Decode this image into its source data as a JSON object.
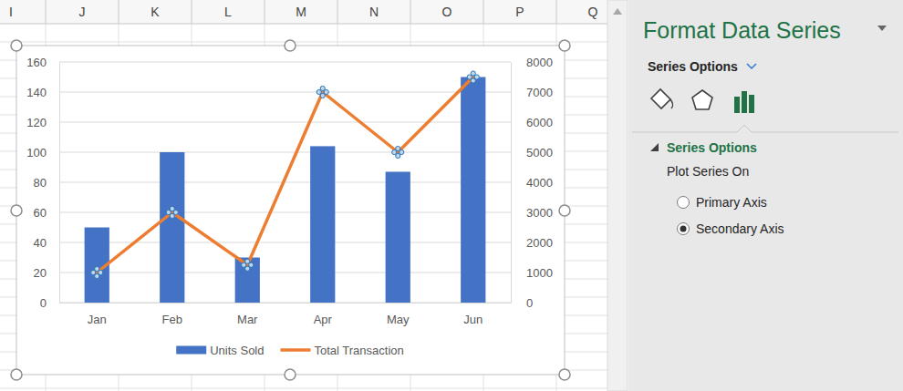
{
  "spreadsheet": {
    "columns": [
      "I",
      "J",
      "K",
      "L",
      "M",
      "N",
      "O",
      "P",
      "Q"
    ]
  },
  "panel": {
    "title": "Format Data Series",
    "tab": "Series Options",
    "section": "Series Options",
    "group": "Plot Series On",
    "options": [
      {
        "label": "Primary Axis",
        "selected": false
      },
      {
        "label": "Secondary Axis",
        "selected": true
      }
    ]
  },
  "chart_data": {
    "type": "bar",
    "categories": [
      "Jan",
      "Feb",
      "Mar",
      "Apr",
      "May",
      "Jun"
    ],
    "series": [
      {
        "name": "Units Sold",
        "type": "bar",
        "color": "#4472c4",
        "values": [
          50,
          100,
          30,
          104,
          87,
          150
        ]
      },
      {
        "name": "Total Transaction",
        "type": "line",
        "color": "#ed7d31",
        "axis": "y2",
        "values": [
          1000,
          3000,
          1250,
          7000,
          5000,
          7500
        ]
      }
    ],
    "ylim": [
      0,
      160
    ],
    "yticks": [
      0,
      20,
      40,
      60,
      80,
      100,
      120,
      140,
      160
    ],
    "y2lim": [
      0,
      8000
    ],
    "y2ticks": [
      0,
      1000,
      2000,
      3000,
      4000,
      5000,
      6000,
      7000,
      8000
    ],
    "grid": true,
    "legend": "bottom"
  }
}
